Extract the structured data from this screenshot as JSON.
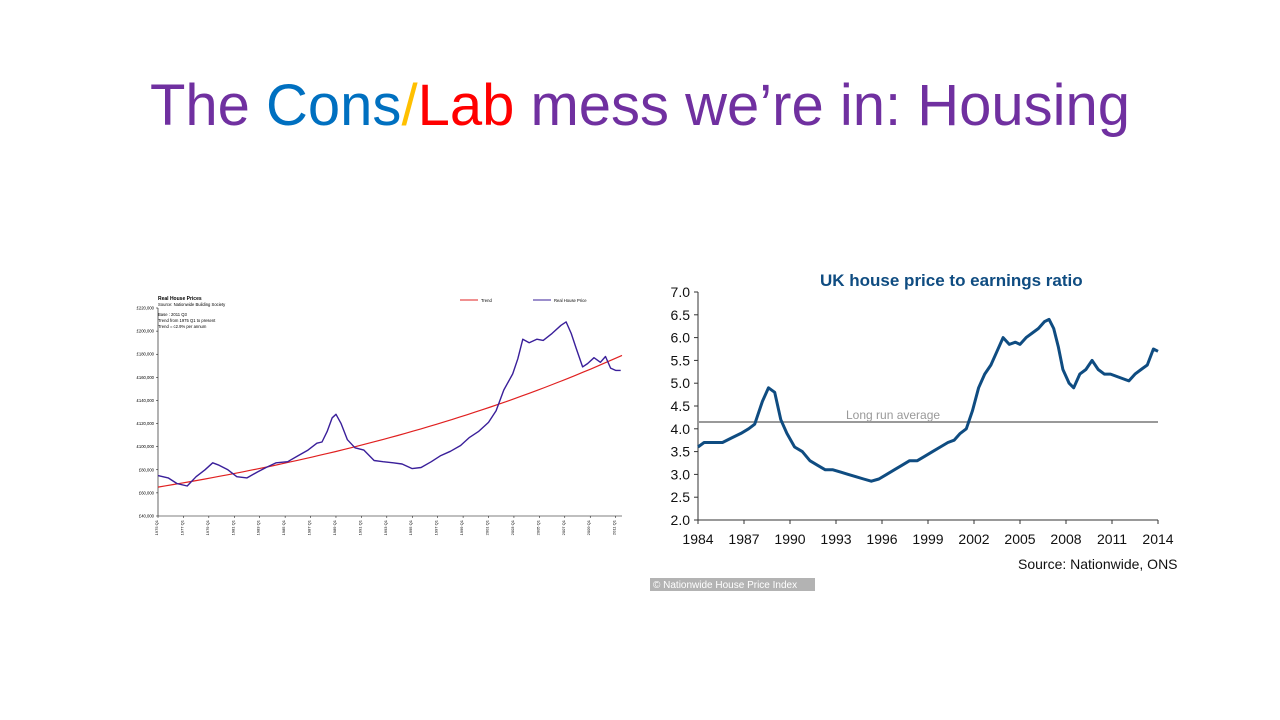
{
  "slide": {
    "title_parts": [
      {
        "text": "The ",
        "color": "#7030a0"
      },
      {
        "text": "Cons",
        "color": "#0070c0"
      },
      {
        "text": "/",
        "color": "#ffc000"
      },
      {
        "text": "Lab",
        "color": "#ff0000"
      },
      {
        "text": " mess we’re in: Housing",
        "color": "#7030a0"
      }
    ]
  },
  "chart_data": [
    {
      "type": "line",
      "title": "Real House Prices",
      "subtitle": "Source: Nationwide Building Society",
      "annotations": [
        "Base : 2011 Q3",
        "Trend from 1975 Q1 to present",
        "Trend = c2.9% per annum"
      ],
      "legend": [
        "Trend",
        "Real House Price"
      ],
      "legend_position": "top-right",
      "y_ticks": [
        "£40,000",
        "£60,000",
        "£80,000",
        "£100,000",
        "£120,000",
        "£140,000",
        "£160,000",
        "£180,000",
        "£200,000",
        "£220,000"
      ],
      "ylim": [
        40000,
        220000
      ],
      "x_ticks": [
        "1975 Q1",
        "1977 Q1",
        "1979 Q1",
        "1981 Q1",
        "1983 Q1",
        "1985 Q1",
        "1987 Q1",
        "1989 Q1",
        "1991 Q1",
        "1993 Q1",
        "1995 Q1",
        "1997 Q1",
        "1999 Q1",
        "2001 Q1",
        "2003 Q1",
        "2005 Q1",
        "2007 Q1",
        "2009 Q1",
        "2011 Q1"
      ],
      "xlim": [
        1975.0,
        2011.5
      ],
      "colors": {
        "Trend": "#e02020",
        "Real House Price": "#3a1f9a"
      },
      "series": [
        {
          "name": "Trend",
          "x": [
            1975,
            1980,
            1985,
            1990,
            1995,
            2000,
            2005,
            2011.5
          ],
          "y": [
            65000,
            75000,
            86500,
            100000,
            115000,
            133000,
            153000,
            179000
          ]
        },
        {
          "name": "Real House Price",
          "x": [
            1975,
            1975.8,
            1976.5,
            1977.3,
            1978,
            1978.7,
            1979.3,
            1979.8,
            1980.5,
            1981.2,
            1982,
            1982.8,
            1983.5,
            1984.3,
            1985.2,
            1986,
            1986.8,
            1987.5,
            1987.9,
            1988.3,
            1988.7,
            1989,
            1989.4,
            1989.9,
            1990.5,
            1991.2,
            1992,
            1992.7,
            1993.5,
            1994.2,
            1995,
            1995.7,
            1996.5,
            1997.2,
            1998,
            1998.8,
            1999.5,
            2000.2,
            2001,
            2001.6,
            2002.2,
            2002.9,
            2003.3,
            2003.7,
            2004.2,
            2004.8,
            2005.3,
            2006,
            2006.7,
            2007.1,
            2007.5,
            2007.9,
            2008.4,
            2008.8,
            2009.3,
            2009.8,
            2010.2,
            2010.6,
            2011,
            2011.4
          ],
          "y": [
            75000,
            73000,
            68000,
            66000,
            74000,
            80000,
            86000,
            84000,
            80000,
            74000,
            73000,
            78000,
            82000,
            86000,
            87000,
            92000,
            97000,
            103000,
            104000,
            113000,
            125000,
            128000,
            120000,
            106000,
            99000,
            97000,
            88000,
            87000,
            86000,
            85000,
            81000,
            82000,
            87000,
            92000,
            96000,
            101000,
            108000,
            113000,
            121000,
            131000,
            149000,
            163000,
            176000,
            193000,
            190000,
            193000,
            192000,
            198000,
            205000,
            208000,
            198000,
            185000,
            169000,
            172000,
            177000,
            173000,
            178000,
            168000,
            166000,
            166000
          ]
        }
      ]
    },
    {
      "type": "line",
      "title": "UK house price to earnings ratio",
      "x_ticks": [
        "1984",
        "1987",
        "1990",
        "1993",
        "1996",
        "1999",
        "2002",
        "2005",
        "2008",
        "2011",
        "2014"
      ],
      "xlim": [
        1984,
        2014
      ],
      "y_ticks": [
        "7.0",
        "6.5",
        "6.0",
        "5.5",
        "5.0",
        "4.5",
        "4.0",
        "3.5",
        "3.0",
        "2.5",
        "2.0"
      ],
      "ylim": [
        2.0,
        7.0
      ],
      "annotations": [
        {
          "text": "Long run average",
          "value": 4.15
        }
      ],
      "source": "Source: Nationwide, ONS",
      "credit": "© Nationwide House Price Index",
      "colors": {
        "ratio": "#0f4c81",
        "average": "#999999"
      },
      "series": [
        {
          "name": "",
          "x": [
            1984,
            1984.4,
            1985,
            1985.6,
            1986.2,
            1986.8,
            1987.3,
            1987.7,
            1988.2,
            1988.6,
            1989,
            1989.4,
            1989.8,
            1990.3,
            1990.8,
            1991.3,
            1991.8,
            1992.3,
            1992.8,
            1993.3,
            1993.8,
            1994.3,
            1994.8,
            1995.3,
            1995.8,
            1996.3,
            1996.8,
            1997.3,
            1997.8,
            1998.3,
            1998.8,
            1999.3,
            1999.8,
            2000.3,
            2000.7,
            2001.1,
            2001.5,
            2001.9,
            2002.3,
            2002.7,
            2003.1,
            2003.5,
            2003.9,
            2004.3,
            2004.7,
            2005,
            2005.4,
            2005.8,
            2006.2,
            2006.6,
            2006.9,
            2007.2,
            2007.5,
            2007.8,
            2008.2,
            2008.5,
            2008.9,
            2009.3,
            2009.7,
            2010.1,
            2010.5,
            2010.9,
            2011.3,
            2011.7,
            2012.1,
            2012.5,
            2012.9,
            2013.3,
            2013.7,
            2014
          ],
          "y": [
            3.6,
            3.7,
            3.7,
            3.7,
            3.8,
            3.9,
            4.0,
            4.1,
            4.6,
            4.9,
            4.8,
            4.2,
            3.9,
            3.6,
            3.5,
            3.3,
            3.2,
            3.1,
            3.1,
            3.05,
            3.0,
            2.95,
            2.9,
            2.85,
            2.9,
            3.0,
            3.1,
            3.2,
            3.3,
            3.3,
            3.4,
            3.5,
            3.6,
            3.7,
            3.75,
            3.9,
            4.0,
            4.4,
            4.9,
            5.2,
            5.4,
            5.7,
            6.0,
            5.85,
            5.9,
            5.85,
            6.0,
            6.1,
            6.2,
            6.35,
            6.4,
            6.2,
            5.8,
            5.3,
            5.0,
            4.9,
            5.2,
            5.3,
            5.5,
            5.3,
            5.2,
            5.2,
            5.15,
            5.1,
            5.05,
            5.2,
            5.3,
            5.4,
            5.75,
            5.7
          ]
        }
      ]
    }
  ]
}
